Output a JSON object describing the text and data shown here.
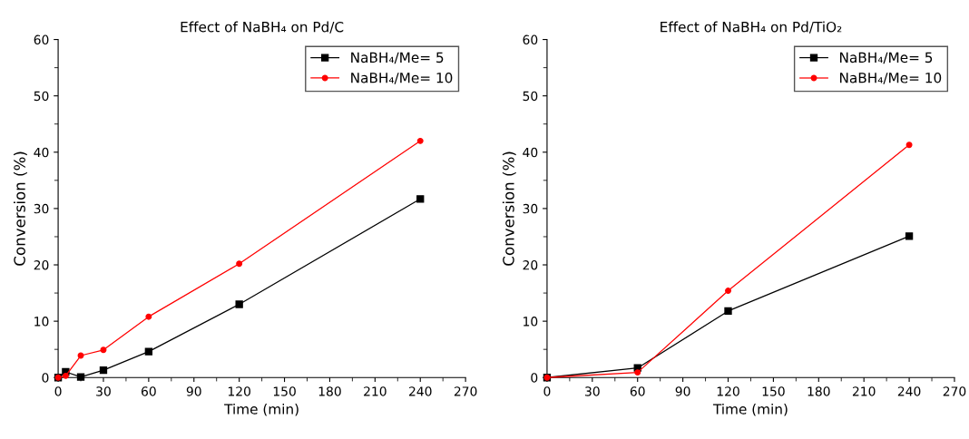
{
  "chart_data": [
    {
      "type": "line",
      "title": "Effect of NaBH₄ on Pd/C",
      "xlabel": "Time (min)",
      "ylabel": "Conversion (%)",
      "xlim": [
        0,
        270
      ],
      "xticks": [
        0,
        30,
        60,
        90,
        120,
        150,
        180,
        210,
        240,
        270
      ],
      "ylim": [
        0,
        60
      ],
      "yticks": [
        0,
        10,
        20,
        30,
        40,
        50,
        60
      ],
      "legend": "top right",
      "grid": false,
      "series": [
        {
          "name": "NaBH₄/Me= 5",
          "color": "#000000",
          "marker": "square",
          "x": [
            0,
            5,
            15,
            30,
            60,
            120,
            240
          ],
          "values": [
            0,
            1.0,
            0.1,
            1.3,
            4.6,
            13.0,
            31.7
          ]
        },
        {
          "name": "NaBH₄/Me= 10",
          "color": "#ff0000",
          "marker": "circle",
          "x": [
            0,
            5,
            15,
            30,
            60,
            120,
            240
          ],
          "values": [
            0,
            0.3,
            3.9,
            4.9,
            10.8,
            20.2,
            42.0
          ]
        }
      ]
    },
    {
      "type": "line",
      "title": "Effect of NaBH₄ on Pd/TiO₂",
      "xlabel": "Time (min)",
      "ylabel": "Conversion (%)",
      "xlim": [
        0,
        270
      ],
      "xticks": [
        0,
        30,
        60,
        90,
        120,
        150,
        180,
        210,
        240,
        270
      ],
      "ylim": [
        0,
        60
      ],
      "yticks": [
        0,
        10,
        20,
        30,
        40,
        50,
        60
      ],
      "legend": "top right",
      "grid": false,
      "series": [
        {
          "name": "NaBH₄/Me= 5",
          "color": "#000000",
          "marker": "square",
          "x": [
            0,
            60,
            120,
            240
          ],
          "values": [
            0,
            1.7,
            11.8,
            25.1
          ]
        },
        {
          "name": "NaBH₄/Me= 10",
          "color": "#ff0000",
          "marker": "circle",
          "x": [
            0,
            60,
            120,
            240
          ],
          "values": [
            0,
            0.9,
            15.4,
            41.3
          ]
        }
      ]
    }
  ]
}
